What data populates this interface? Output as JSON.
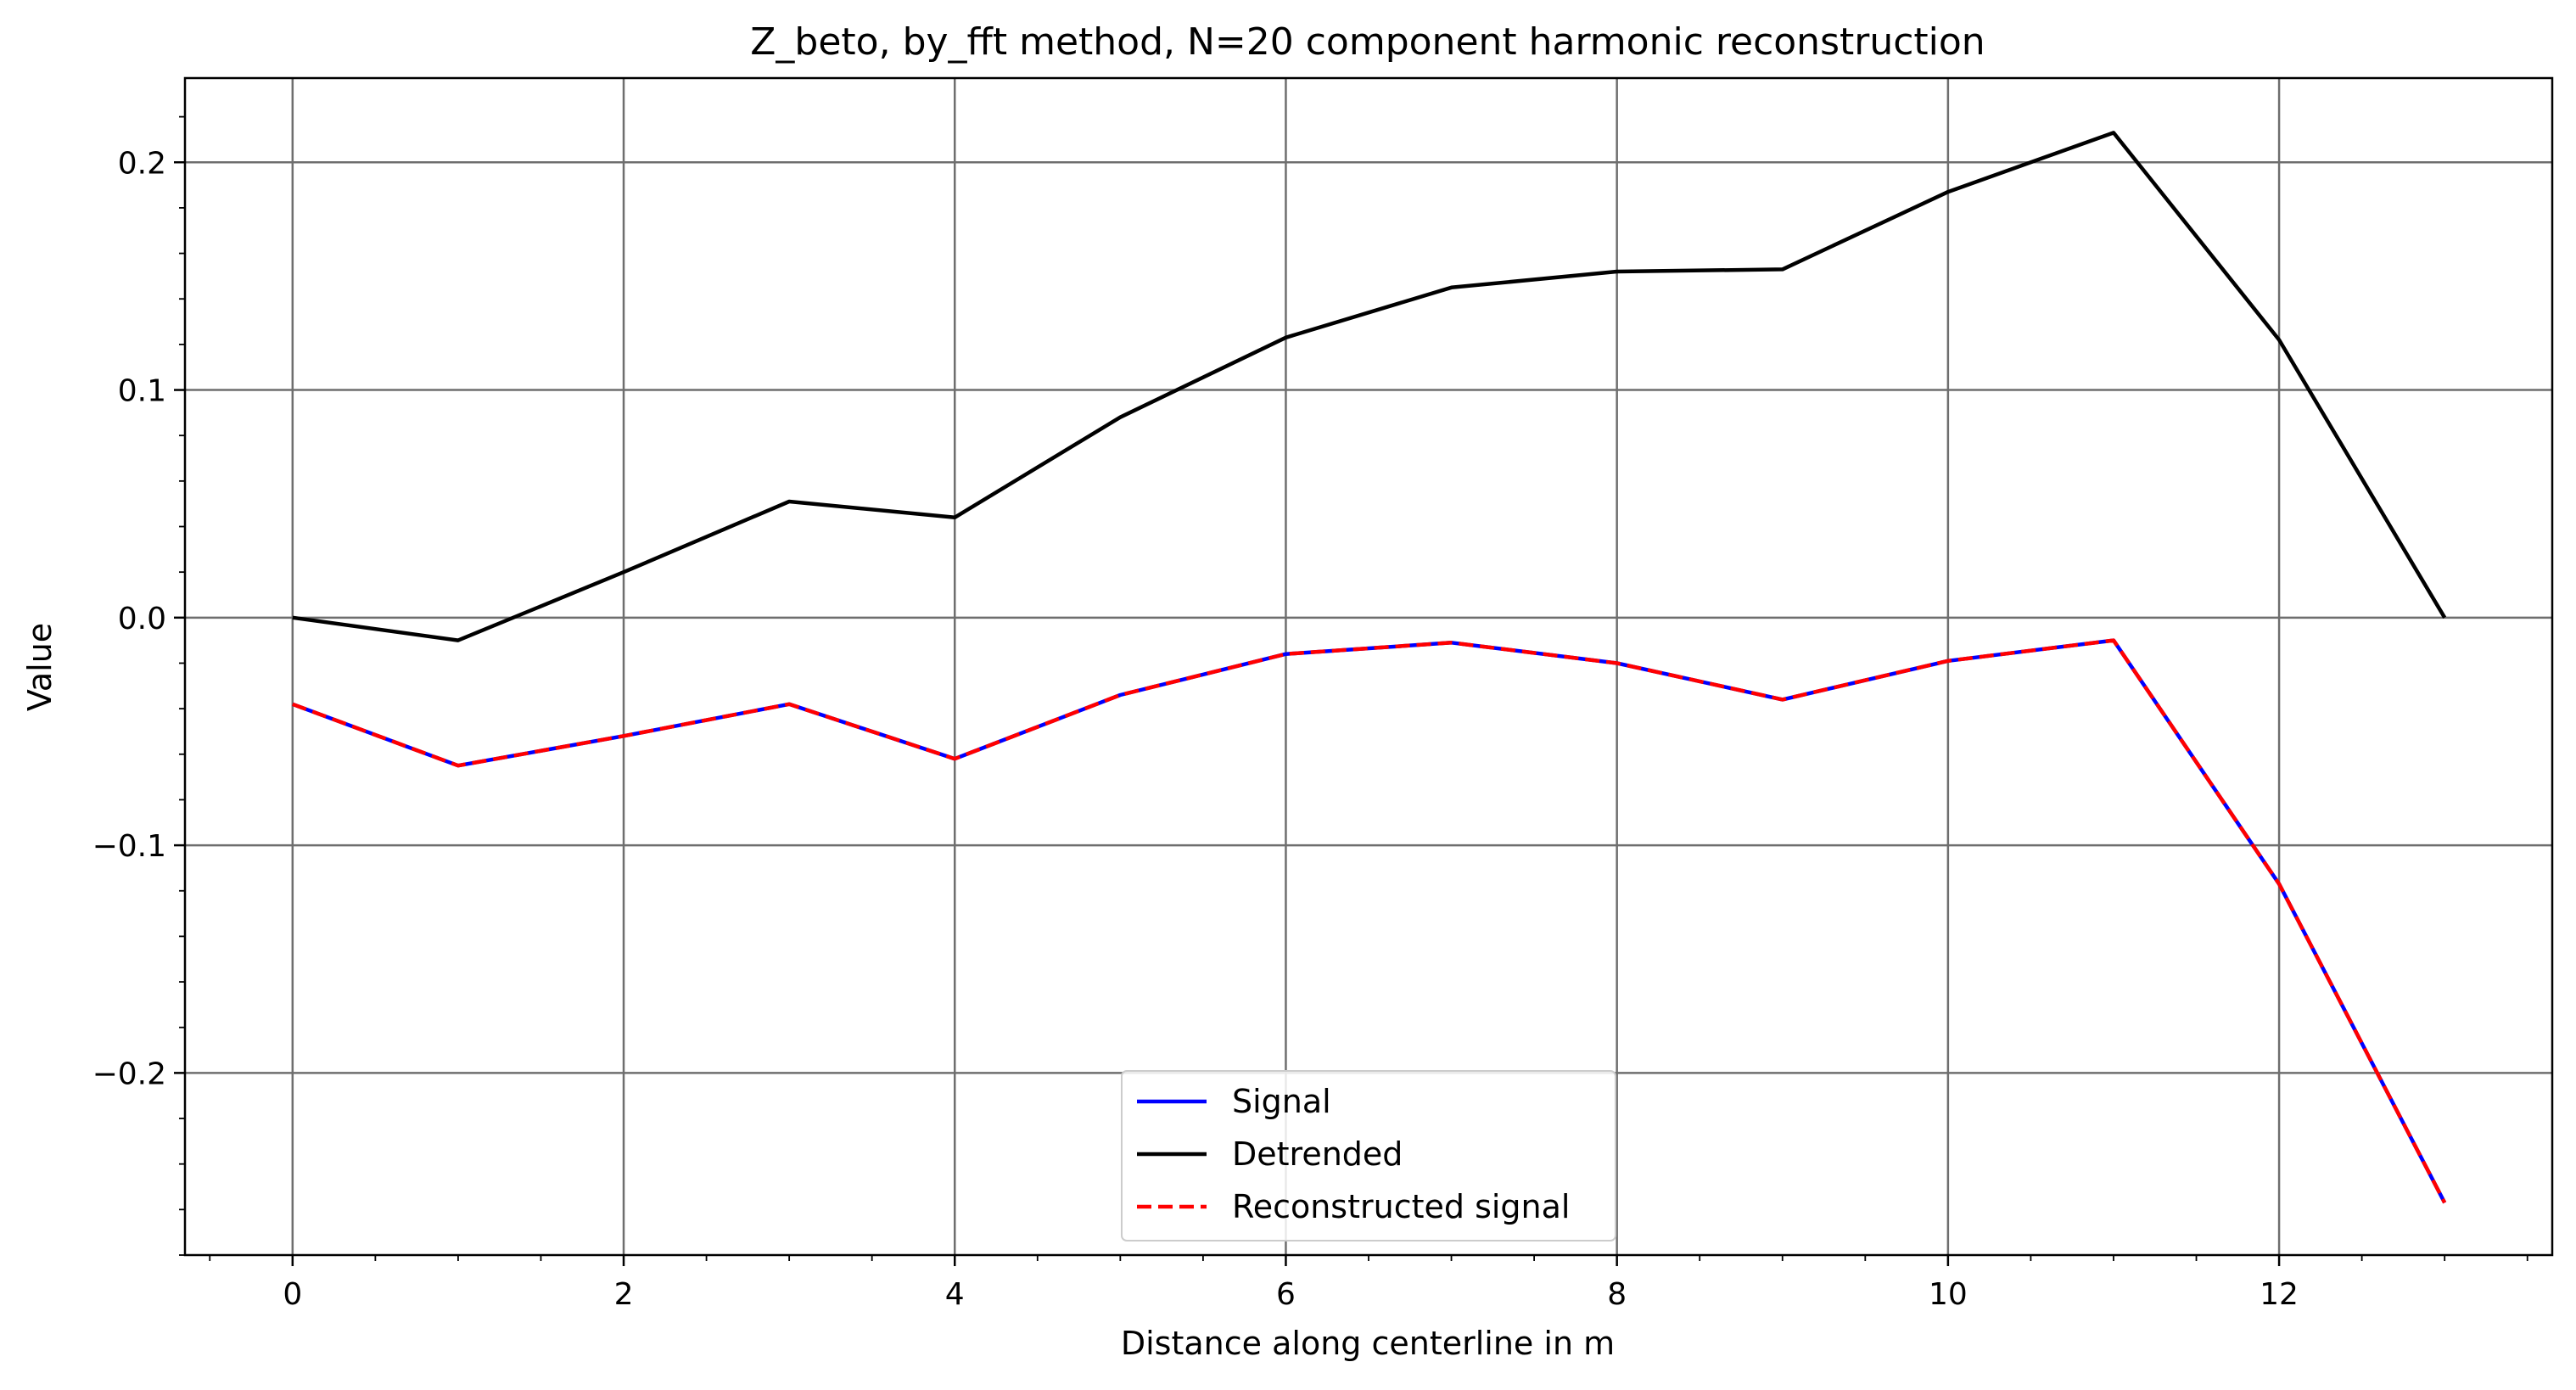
{
  "chart_data": {
    "type": "line",
    "title": "Z_beto, by_fft method, N=20 component harmonic reconstruction",
    "xlabel": "Distance along centerline in m",
    "ylabel": "Value",
    "xlim": [
      -0.65,
      13.65
    ],
    "ylim": [
      -0.28,
      0.237
    ],
    "x_ticks": [
      0,
      2,
      4,
      6,
      8,
      10,
      12
    ],
    "x_tick_labels": [
      "0",
      "2",
      "4",
      "6",
      "8",
      "10",
      "12"
    ],
    "y_ticks": [
      -0.2,
      -0.1,
      0.0,
      0.1,
      0.2
    ],
    "y_tick_labels": [
      "−0.2",
      "−0.1",
      "0.0",
      "0.1",
      "0.2"
    ],
    "grid": true,
    "legend_position": "lower-center",
    "x": [
      0,
      1,
      2,
      3,
      4,
      5,
      6,
      7,
      8,
      9,
      10,
      11,
      12,
      13
    ],
    "series": [
      {
        "name": "Signal",
        "color": "#0000ff",
        "style": "solid",
        "values": [
          -0.038,
          -0.065,
          -0.052,
          -0.038,
          -0.062,
          -0.034,
          -0.016,
          -0.011,
          -0.02,
          -0.036,
          -0.019,
          -0.01,
          -0.117,
          -0.257
        ]
      },
      {
        "name": "Detrended",
        "color": "#000000",
        "style": "solid",
        "values": [
          0.0,
          -0.01,
          0.02,
          0.051,
          0.044,
          0.088,
          0.123,
          0.145,
          0.152,
          0.153,
          0.187,
          0.213,
          0.122,
          0.0
        ]
      },
      {
        "name": "Reconstructed signal",
        "color": "#ff0000",
        "style": "dashed",
        "values": [
          -0.038,
          -0.065,
          -0.052,
          -0.038,
          -0.062,
          -0.034,
          -0.016,
          -0.011,
          -0.02,
          -0.036,
          -0.019,
          -0.01,
          -0.117,
          -0.257
        ]
      }
    ]
  }
}
